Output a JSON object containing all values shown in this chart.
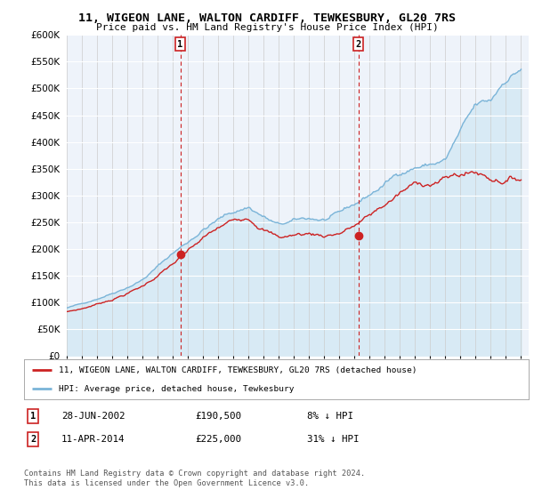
{
  "title": "11, WIGEON LANE, WALTON CARDIFF, TEWKESBURY, GL20 7RS",
  "subtitle": "Price paid vs. HM Land Registry's House Price Index (HPI)",
  "legend_line1": "11, WIGEON LANE, WALTON CARDIFF, TEWKESBURY, GL20 7RS (detached house)",
  "legend_line2": "HPI: Average price, detached house, Tewkesbury",
  "annotation1_date": "28-JUN-2002",
  "annotation1_price": "£190,500",
  "annotation1_hpi": "8% ↓ HPI",
  "annotation2_date": "11-APR-2014",
  "annotation2_price": "£225,000",
  "annotation2_hpi": "31% ↓ HPI",
  "footer": "Contains HM Land Registry data © Crown copyright and database right 2024.\nThis data is licensed under the Open Government Licence v3.0.",
  "hpi_color": "#7ab4d8",
  "hpi_fill_color": "#d8eaf5",
  "price_paid_color": "#cc2222",
  "annotation_color": "#cc2222",
  "background_color": "#eef3fa",
  "ylim": [
    0,
    600000
  ],
  "yticks": [
    0,
    50000,
    100000,
    150000,
    200000,
    250000,
    300000,
    350000,
    400000,
    450000,
    500000,
    550000,
    600000
  ],
  "sale1_x": 2002.5,
  "sale1_y": 190500,
  "sale2_x": 2014.25,
  "sale2_y": 225000,
  "xlim_left": 1995,
  "xlim_right": 2025.5
}
